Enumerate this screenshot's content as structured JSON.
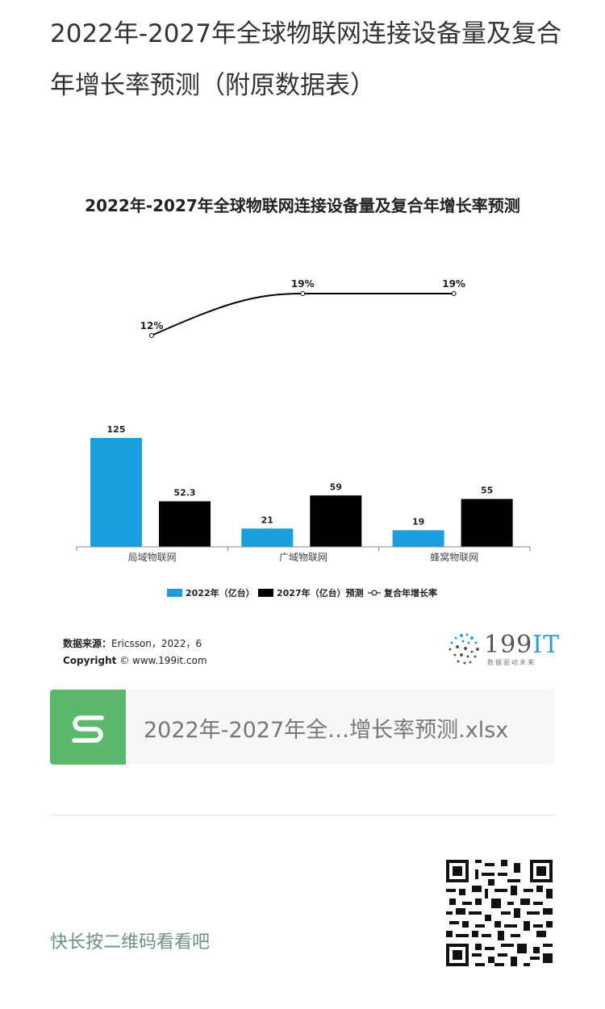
{
  "article": {
    "title": "2022年-2027年全球物联网连接设备量及复合年增长率预测（附原数据表）"
  },
  "chart_data": {
    "type": "bar",
    "title": "2022年-2027年全球物联网连接设备量及复合年增长率预测",
    "categories": [
      "局域物联网",
      "广域物联网",
      "蜂窝物联网"
    ],
    "series": [
      {
        "name": "2022年（亿台）",
        "type": "bar",
        "values": [
          125,
          21,
          19
        ],
        "labels": [
          "125",
          "21",
          "19"
        ],
        "color": "#1a9ee0"
      },
      {
        "name": "2027年（亿台）预测",
        "type": "bar",
        "values": [
          52.3,
          59,
          55
        ],
        "labels": [
          "52.3",
          "59",
          "55"
        ],
        "color": "#000000"
      },
      {
        "name": "复合年增长率",
        "type": "line",
        "values": [
          12,
          19,
          19
        ],
        "labels": [
          "12%",
          "19%",
          "19%"
        ],
        "color": "#000000"
      }
    ],
    "ylim": [
      0,
      140
    ],
    "grid": false,
    "legend_position": "bottom"
  },
  "source": {
    "label": "数据来源：",
    "text": "Ericsson，2022，6",
    "copyright_label": "Copyright",
    "copyright_text": "© www.199it.com"
  },
  "logo": {
    "text_main": "199",
    "text_accent": "IT",
    "subtitle": "数据驱动未来"
  },
  "attachment": {
    "filename": "2022年-2027年全…增长率预测.xlsx",
    "icon": "spreadsheet-icon"
  },
  "qr": {
    "hint": "快长按二维码看看吧",
    "icon": "qr-code-icon"
  }
}
